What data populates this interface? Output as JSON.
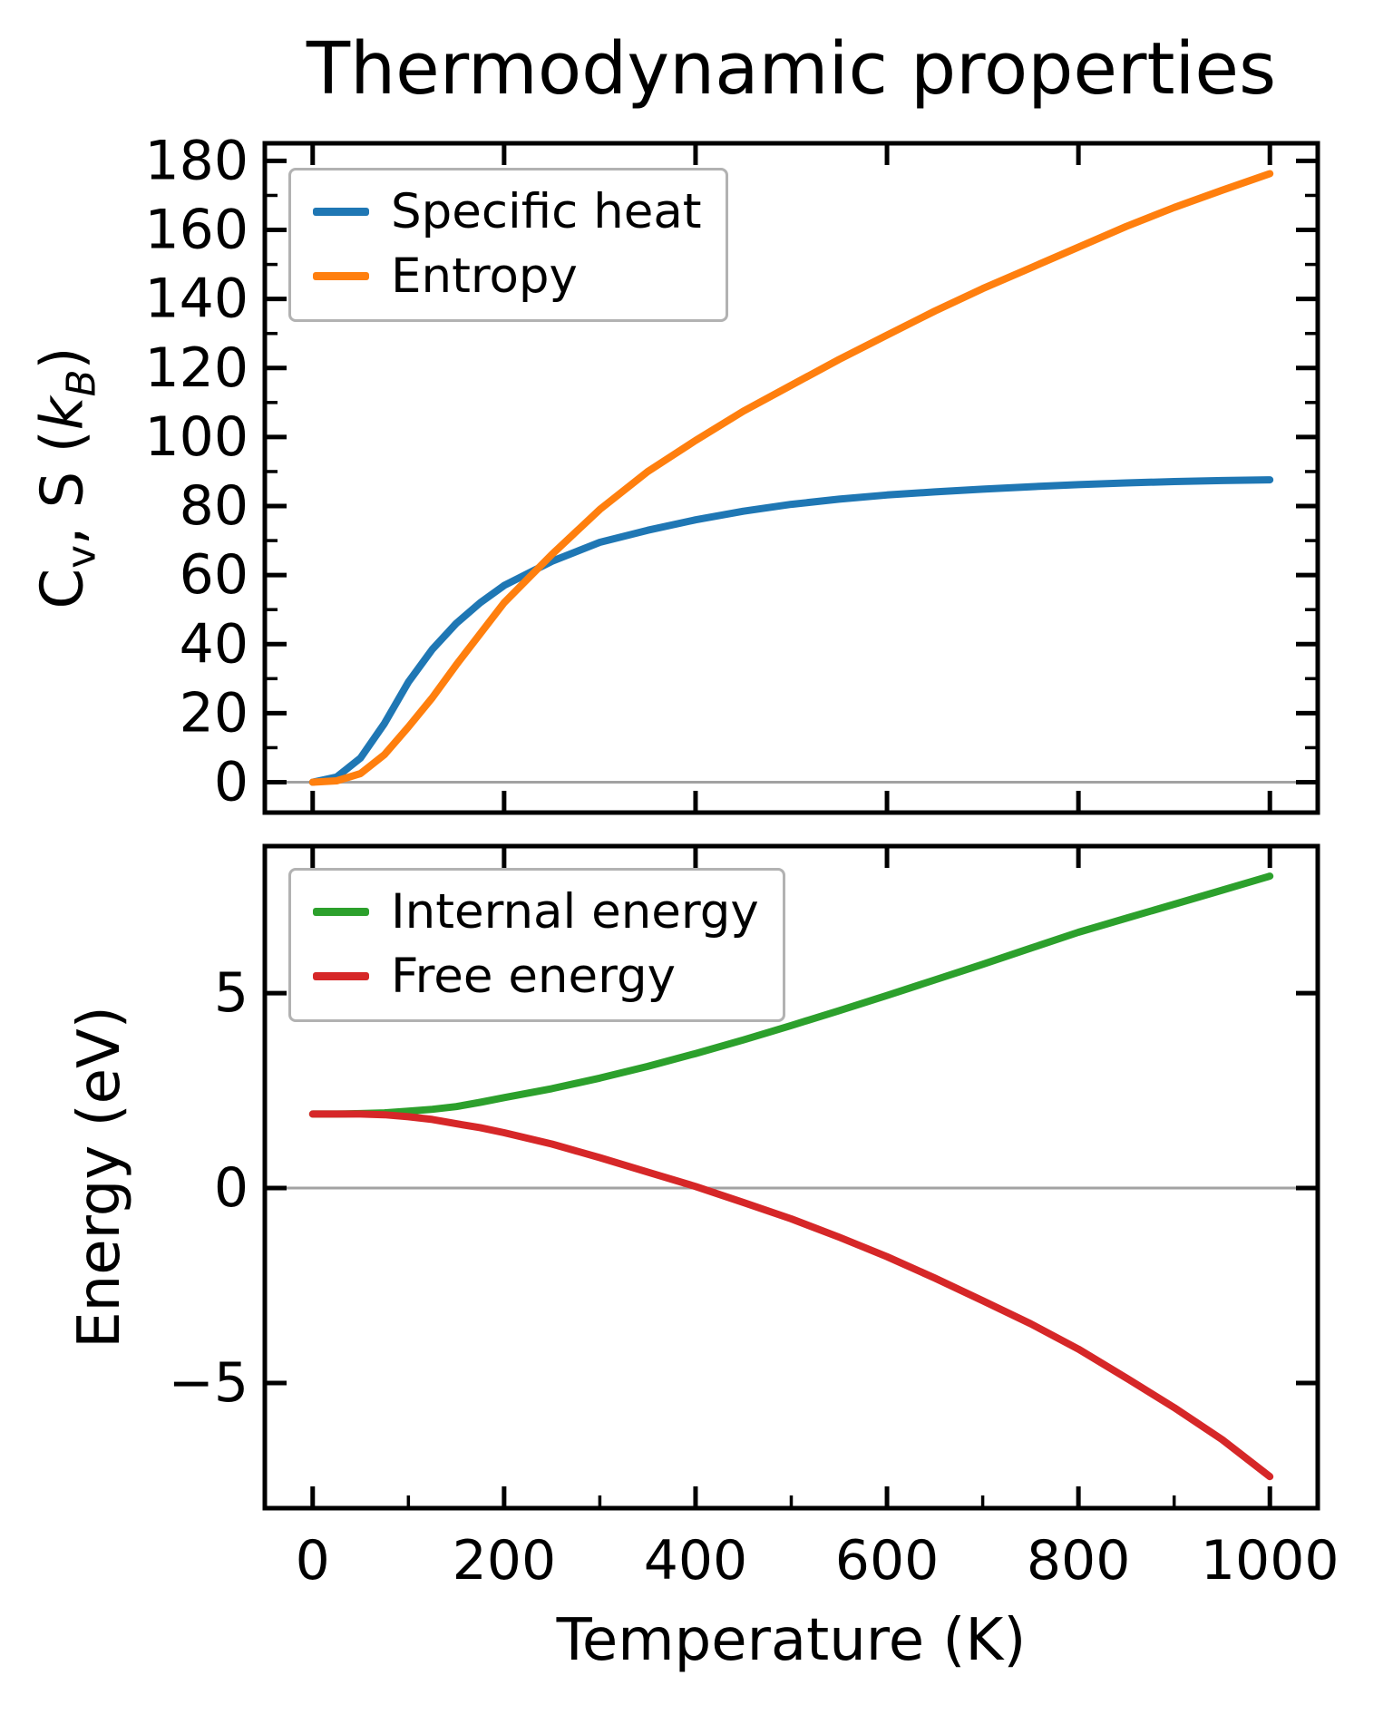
{
  "figure": {
    "title": "Thermodynamic properties",
    "x_axis_label": "Temperature (K)",
    "bottom_y_axis_label": "Energy (eV)",
    "top_y_axis_label": {
      "c": "C",
      "c_sub": "v",
      "mid": ", S (",
      "k": "k",
      "k_sub": "B",
      "end": ")"
    },
    "background_color": "#ffffff",
    "spine_color": "#000000",
    "zero_line_color": "#a2a2a2",
    "legend_border_color": "#b2b2b2"
  },
  "chart_data": [
    {
      "type": "line",
      "panel": "top",
      "ylabel": "Cv, S (kB)",
      "xlabel": "",
      "xlim": [
        -50,
        1050
      ],
      "ylim": [
        -8.8,
        185.1
      ],
      "grid": false,
      "zero_line": true,
      "legend_position": "upper-left",
      "xticks": {
        "values": [
          0,
          200,
          400,
          600,
          800,
          1000
        ],
        "labels_visible": false,
        "minor_values": []
      },
      "yticks": {
        "values": [
          0,
          20,
          40,
          60,
          80,
          100,
          120,
          140,
          160,
          180
        ],
        "labels": [
          "0",
          "20",
          "40",
          "60",
          "80",
          "100",
          "120",
          "140",
          "160",
          "180"
        ],
        "minor_values": [
          10,
          30,
          50,
          70,
          90,
          110,
          130,
          150,
          170
        ]
      },
      "x": [
        0,
        25,
        50,
        75,
        100,
        125,
        150,
        175,
        200,
        250,
        300,
        350,
        400,
        450,
        500,
        550,
        600,
        650,
        700,
        750,
        800,
        850,
        900,
        950,
        1000
      ],
      "series": [
        {
          "name": "Specific heat",
          "color": "#1f77b4",
          "y": [
            0,
            1.5,
            7,
            17,
            29,
            38.5,
            46,
            52,
            57,
            64,
            69.5,
            73,
            76,
            78.5,
            80.5,
            82,
            83.2,
            84.1,
            84.9,
            85.6,
            86.2,
            86.7,
            87.1,
            87.4,
            87.6
          ]
        },
        {
          "name": "Entropy",
          "color": "#ff7f0e",
          "y": [
            0,
            0.4,
            2.5,
            8,
            16,
            24.5,
            34,
            43,
            52,
            66,
            79,
            90,
            99,
            107.5,
            115,
            122.5,
            129.5,
            136.5,
            143,
            149,
            155,
            161,
            166.5,
            171.5,
            176.3
          ]
        }
      ]
    },
    {
      "type": "line",
      "panel": "bottom",
      "ylabel": "Energy (eV)",
      "xlabel": "Temperature (K)",
      "xlim": [
        -50,
        1050
      ],
      "ylim": [
        -8.21,
        8.77
      ],
      "grid": false,
      "zero_line": true,
      "legend_position": "upper-left",
      "xticks": {
        "values": [
          0,
          200,
          400,
          600,
          800,
          1000
        ],
        "labels": [
          "0",
          "200",
          "400",
          "600",
          "800",
          "1000"
        ],
        "labels_visible": true,
        "minor_values": [
          100,
          300,
          500,
          700,
          900
        ]
      },
      "yticks": {
        "values": [
          -5,
          0,
          5
        ],
        "labels": [
          "−5",
          "0",
          "5"
        ],
        "minor_values": []
      },
      "x": [
        0,
        25,
        50,
        75,
        100,
        125,
        150,
        175,
        200,
        250,
        300,
        350,
        400,
        450,
        500,
        550,
        600,
        650,
        700,
        750,
        800,
        850,
        900,
        950,
        1000
      ],
      "series": [
        {
          "name": "Internal energy",
          "color": "#2ca02c",
          "y": [
            1.9,
            1.9,
            1.91,
            1.93,
            1.97,
            2.02,
            2.09,
            2.2,
            2.32,
            2.55,
            2.82,
            3.12,
            3.45,
            3.8,
            4.17,
            4.55,
            4.94,
            5.34,
            5.74,
            6.15,
            6.56,
            6.92,
            7.28,
            7.64,
            8.0
          ]
        },
        {
          "name": "Free energy",
          "color": "#d62728",
          "y": [
            1.9,
            1.9,
            1.9,
            1.88,
            1.83,
            1.76,
            1.65,
            1.55,
            1.42,
            1.13,
            0.78,
            0.41,
            0.04,
            -0.37,
            -0.79,
            -1.26,
            -1.76,
            -2.31,
            -2.89,
            -3.48,
            -4.13,
            -4.87,
            -5.63,
            -6.45,
            -7.4
          ]
        }
      ]
    }
  ]
}
